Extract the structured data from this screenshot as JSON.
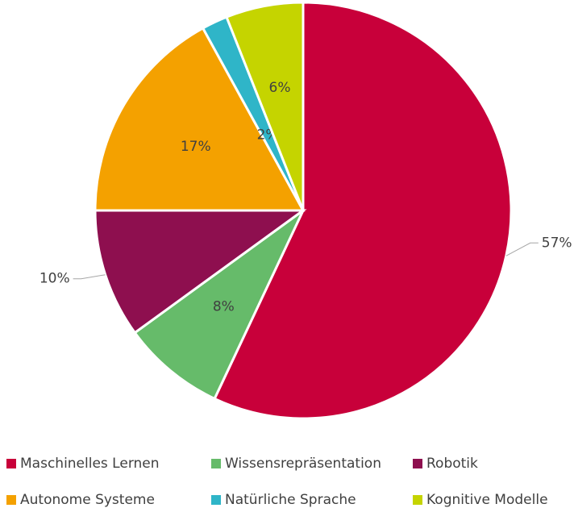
{
  "chart_data": {
    "type": "pie",
    "categories": [
      "Maschinelles Lernen",
      "Wissensrepräsentation",
      "Robotik",
      "Autonome Systeme",
      "Natürliche Sprache",
      "Kognitive Modelle"
    ],
    "values": [
      57,
      8,
      10,
      17,
      2,
      6
    ],
    "value_labels": [
      "57%",
      "8%",
      "10%",
      "17%",
      "2%",
      "6%"
    ],
    "colors": [
      "#c8003a",
      "#66bb6a",
      "#8e0f4f",
      "#f4a100",
      "#2fb5c8",
      "#c5d400"
    ],
    "legend": "bottom"
  }
}
